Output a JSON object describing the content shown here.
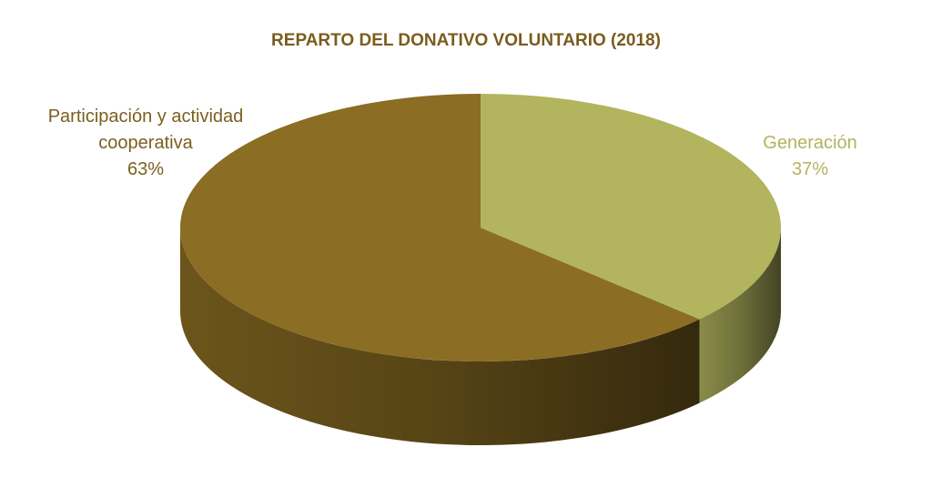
{
  "chart_data": {
    "type": "pie",
    "title": "REPARTO DEL DONATIVO VOLUNTARIO (2018)",
    "categories": [
      "Participación y actividad cooperativa",
      "Generación"
    ],
    "values": [
      63,
      37
    ],
    "value_labels": [
      "63%",
      "37%"
    ],
    "colors": [
      "#8B6D23",
      "#B2B45E"
    ]
  }
}
